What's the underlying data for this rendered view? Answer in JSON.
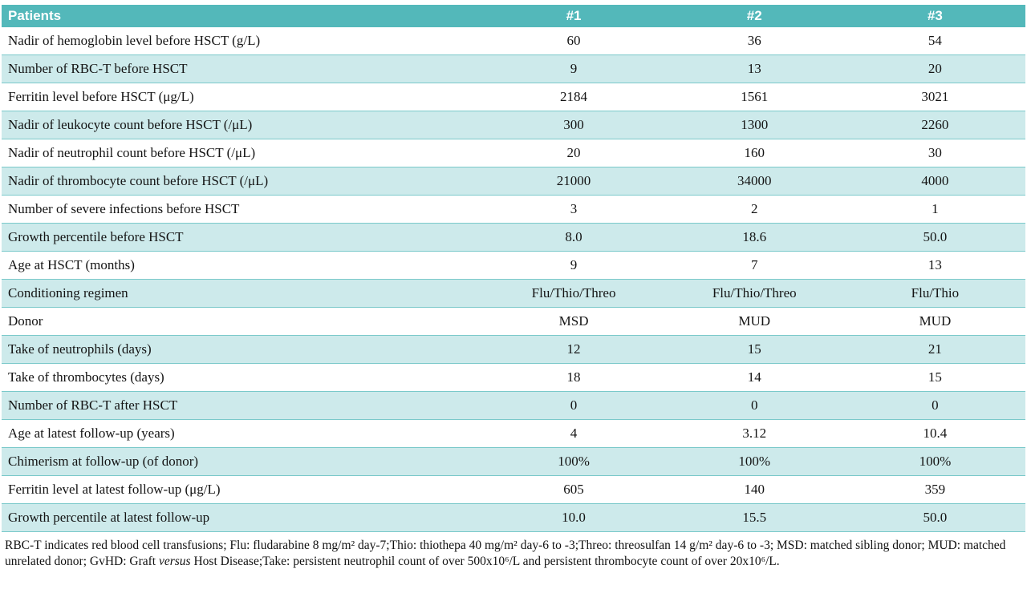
{
  "colors": {
    "header_bg": "#53b8ba",
    "row_alt_bg": "#cdeaeb",
    "row_border": "#7ac9ca",
    "header_text": "#ffffff"
  },
  "table": {
    "header": {
      "label": "Patients",
      "columns": [
        "#1",
        "#2",
        "#3"
      ]
    },
    "rows": [
      {
        "label": "Nadir of hemoglobin level before HSCT (g/L)",
        "values": [
          "60",
          "36",
          "54"
        ]
      },
      {
        "label": "Number of RBC-T before HSCT",
        "values": [
          "9",
          "13",
          "20"
        ]
      },
      {
        "label": "Ferritin level before HSCT (μg/L)",
        "values": [
          "2184",
          "1561",
          "3021"
        ]
      },
      {
        "label": "Nadir of leukocyte count before HSCT (/μL)",
        "values": [
          "300",
          "1300",
          "2260"
        ]
      },
      {
        "label": "Nadir of neutrophil count before HSCT (/μL)",
        "values": [
          "20",
          "160",
          "30"
        ]
      },
      {
        "label": "Nadir of thrombocyte count before HSCT (/μL)",
        "values": [
          "21000",
          "34000",
          "4000"
        ]
      },
      {
        "label": "Number of severe infections before HSCT",
        "values": [
          "3",
          "2",
          "1"
        ]
      },
      {
        "label": "Growth percentile before HSCT",
        "values": [
          "8.0",
          "18.6",
          "50.0"
        ]
      },
      {
        "label": "Age at HSCT (months)",
        "values": [
          "9",
          "7",
          "13"
        ]
      },
      {
        "label": "Conditioning regimen",
        "values": [
          "Flu/Thio/Threo",
          "Flu/Thio/Threo",
          "Flu/Thio"
        ]
      },
      {
        "label": "Donor",
        "values": [
          "MSD",
          "MUD",
          "MUD"
        ]
      },
      {
        "label": "Take of neutrophils (days)",
        "values": [
          "12",
          "15",
          "21"
        ]
      },
      {
        "label": "Take of thrombocytes (days)",
        "values": [
          "18",
          "14",
          "15"
        ]
      },
      {
        "label": "Number of RBC-T after HSCT",
        "values": [
          "0",
          "0",
          "0"
        ]
      },
      {
        "label": "Age at latest follow-up (years)",
        "values": [
          "4",
          "3.12",
          "10.4"
        ]
      },
      {
        "label": "Chimerism at follow-up (of donor)",
        "values": [
          "100%",
          "100%",
          "100%"
        ]
      },
      {
        "label": "Ferritin level at latest follow-up (μg/L)",
        "values": [
          "605",
          "140",
          "359"
        ]
      },
      {
        "label": "Growth percentile at latest follow-up",
        "values": [
          "10.0",
          "15.5",
          "50.0"
        ]
      }
    ]
  },
  "footnote": {
    "part1": "RBC-T indicates red blood cell transfusions; Flu: fludarabine 8 mg/m² day-7;Thio: thiothepa 40 mg/m² day-6 to -3;Threo: threosulfan 14 g/m² day-6 to -3; MSD: matched sibling donor; MUD: matched unrelated donor; GvHD: Graft ",
    "italic": "versus",
    "part2": " Host Disease;Take: persistent neutrophil count of over 500x10⁶/L and persistent thrombocyte count of over 20x10⁶/L."
  }
}
